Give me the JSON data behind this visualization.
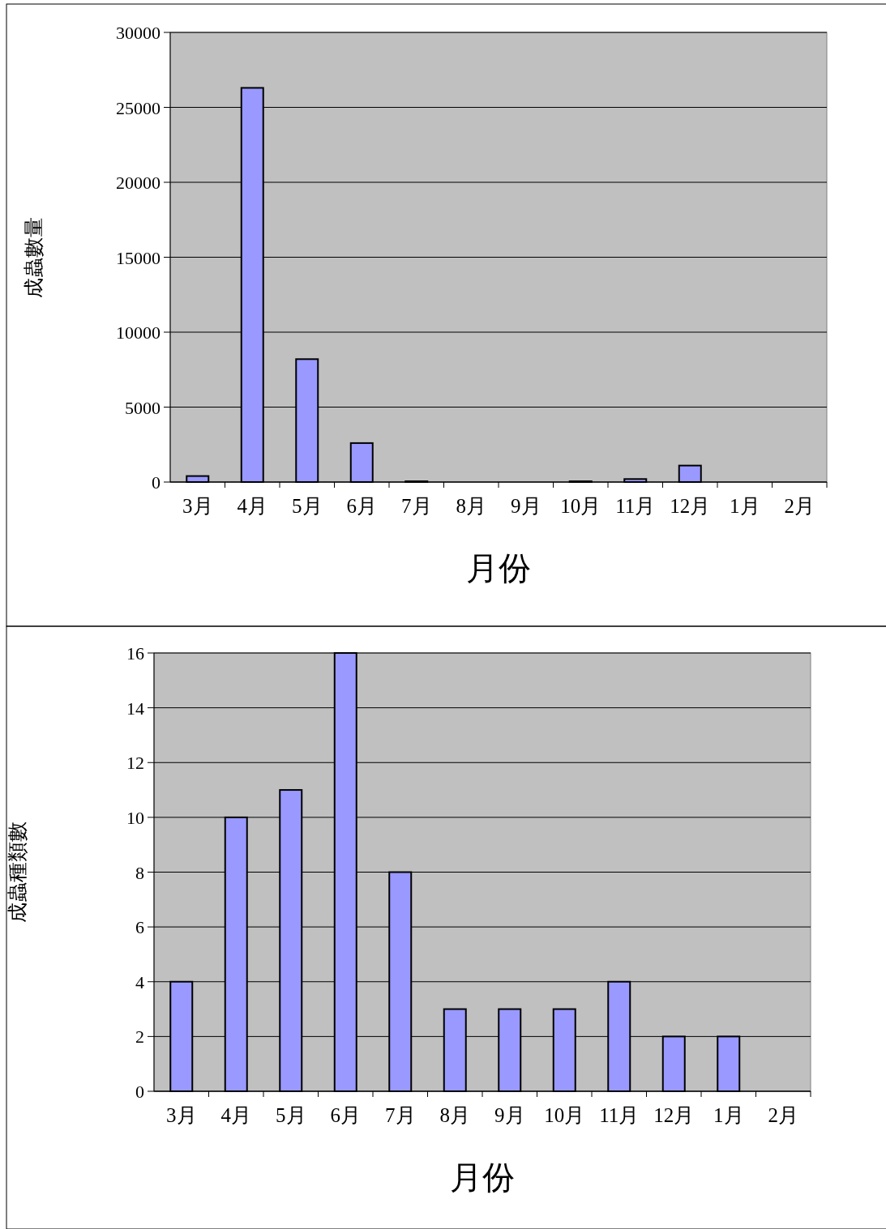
{
  "chart_data": [
    {
      "type": "bar",
      "categories": [
        "3月",
        "4月",
        "5月",
        "6月",
        "7月",
        "8月",
        "9月",
        "10月",
        "11月",
        "12月",
        "1月",
        "2月"
      ],
      "values": [
        400,
        26300,
        8200,
        2600,
        50,
        0,
        0,
        50,
        200,
        1100,
        0,
        0
      ],
      "color": "#9999ff",
      "ylim": [
        0,
        30000
      ],
      "yticks": [
        0,
        5000,
        10000,
        15000,
        20000,
        25000,
        30000
      ],
      "grid": "y",
      "xlabel": "月份",
      "ylabel": "成蟲數量"
    },
    {
      "type": "bar",
      "categories": [
        "3月",
        "4月",
        "5月",
        "6月",
        "7月",
        "8月",
        "9月",
        "10月",
        "11月",
        "12月",
        "1月",
        "2月"
      ],
      "values": [
        4,
        10,
        11,
        16,
        8,
        3,
        3,
        3,
        4,
        2,
        2,
        0
      ],
      "color": "#9999ff",
      "ylim": [
        0,
        16
      ],
      "yticks": [
        0,
        2,
        4,
        6,
        8,
        10,
        12,
        14,
        16
      ],
      "grid": "y",
      "xlabel": "月份",
      "ylabel": "成蟲種類數"
    }
  ]
}
